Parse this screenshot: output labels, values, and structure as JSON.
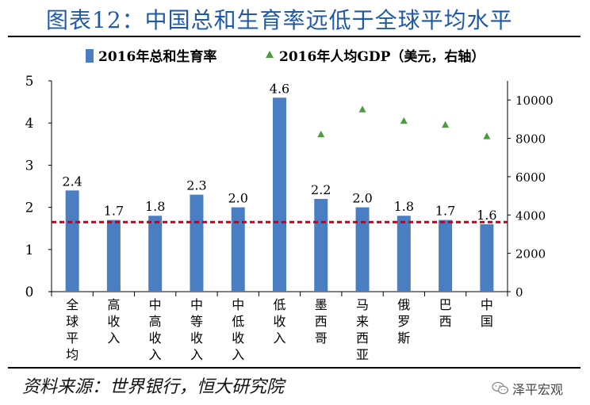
{
  "header": {
    "title": "图表12：中国总和生育率远低于全球平均水平"
  },
  "footer": {
    "source": "资料来源：世界银行，恒大研究院",
    "watermark": "泽平宏观"
  },
  "colors": {
    "bar": "#4a7ec3",
    "scatter": "#4f9a3f",
    "refline": "#c0001a",
    "title": "#1e5aa8"
  },
  "chart_data": {
    "type": "bar",
    "categories": [
      "全球平均",
      "高收入",
      "中高收入",
      "中等收入",
      "中低收入",
      "低收入",
      "墨西哥",
      "马来西亚",
      "俄罗斯",
      "巴西",
      "中国"
    ],
    "series": [
      {
        "name": "2016年总和生育率",
        "type": "bar",
        "axis": "left",
        "values": [
          2.4,
          1.7,
          1.8,
          2.3,
          2.0,
          4.6,
          2.2,
          2.0,
          1.8,
          1.7,
          1.6
        ]
      },
      {
        "name": "2016年人均GDP（美元，右轴）",
        "type": "scatter",
        "axis": "right",
        "values": [
          null,
          null,
          null,
          null,
          null,
          null,
          8200,
          9500,
          8900,
          8700,
          8100
        ]
      }
    ],
    "data_labels": [
      "2.4",
      "1.7",
      "1.8",
      "2.3",
      "2.0",
      "4.6",
      "2.2",
      "2.0",
      "1.8",
      "1.7",
      "1.6"
    ],
    "reference_line": {
      "value": 1.65,
      "axis": "left",
      "style": "dashed"
    },
    "y_left": {
      "lim": [
        0,
        5
      ],
      "ticks": [
        "0",
        "1",
        "2",
        "3",
        "4",
        "5"
      ]
    },
    "y_right": {
      "lim": [
        0,
        11000
      ],
      "ticks": [
        "0",
        "2000",
        "4000",
        "6000",
        "8000",
        "10000"
      ],
      "tick_values": [
        0,
        2000,
        4000,
        6000,
        8000,
        10000
      ]
    },
    "legend": {
      "position": "top"
    }
  }
}
